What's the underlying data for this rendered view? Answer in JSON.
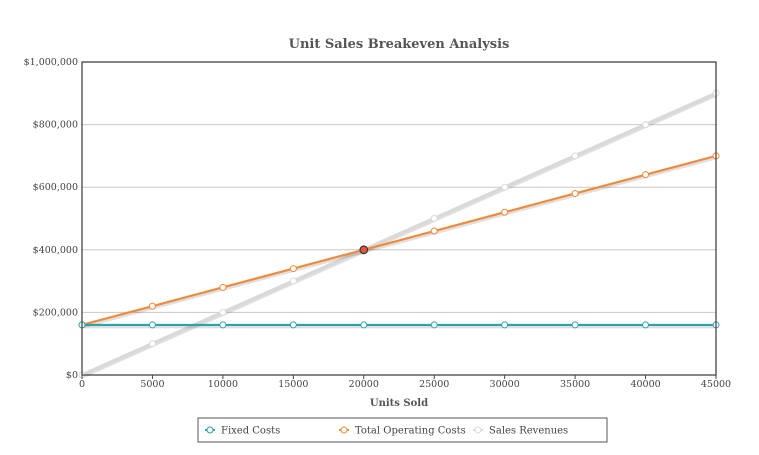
{
  "chart_data": {
    "type": "line",
    "title": "Unit Sales Breakeven Analysis",
    "xlabel": "Units Sold",
    "ylabel": "",
    "x": [
      0,
      5000,
      10000,
      15000,
      20000,
      25000,
      30000,
      35000,
      40000,
      45000
    ],
    "x_ticks": [
      "0",
      "5000",
      "10000",
      "15000",
      "20000",
      "25000",
      "30000",
      "35000",
      "40000",
      "45000"
    ],
    "xlim": [
      0,
      45000
    ],
    "ylim": [
      0,
      1000000
    ],
    "y_ticks": [
      {
        "value": 0,
        "label": "$0"
      },
      {
        "value": 200000,
        "label": "$200,000"
      },
      {
        "value": 400000,
        "label": "$400,000"
      },
      {
        "value": 600000,
        "label": "$600,000"
      },
      {
        "value": 800000,
        "label": "$800,000"
      },
      {
        "value": 1000000,
        "label": "$1,000,000"
      }
    ],
    "grid": true,
    "legend_position": "bottom",
    "series": [
      {
        "name": "Fixed Costs",
        "color": "#2aa3a9",
        "values": [
          160000,
          160000,
          160000,
          160000,
          160000,
          160000,
          160000,
          160000,
          160000,
          160000
        ]
      },
      {
        "name": "Total Operating Costs",
        "color": "#f08a3c",
        "values": [
          160000,
          220000,
          280000,
          340000,
          400000,
          460000,
          520000,
          580000,
          640000,
          700000
        ]
      },
      {
        "name": "Sales Revenues",
        "color": "#d9d9d9",
        "values": [
          0,
          100000,
          200000,
          300000,
          400000,
          500000,
          600000,
          700000,
          800000,
          900000
        ]
      }
    ],
    "annotations": [
      {
        "type": "breakeven-point",
        "x": 20000,
        "y": 400000,
        "color": "#e8553a"
      }
    ]
  }
}
